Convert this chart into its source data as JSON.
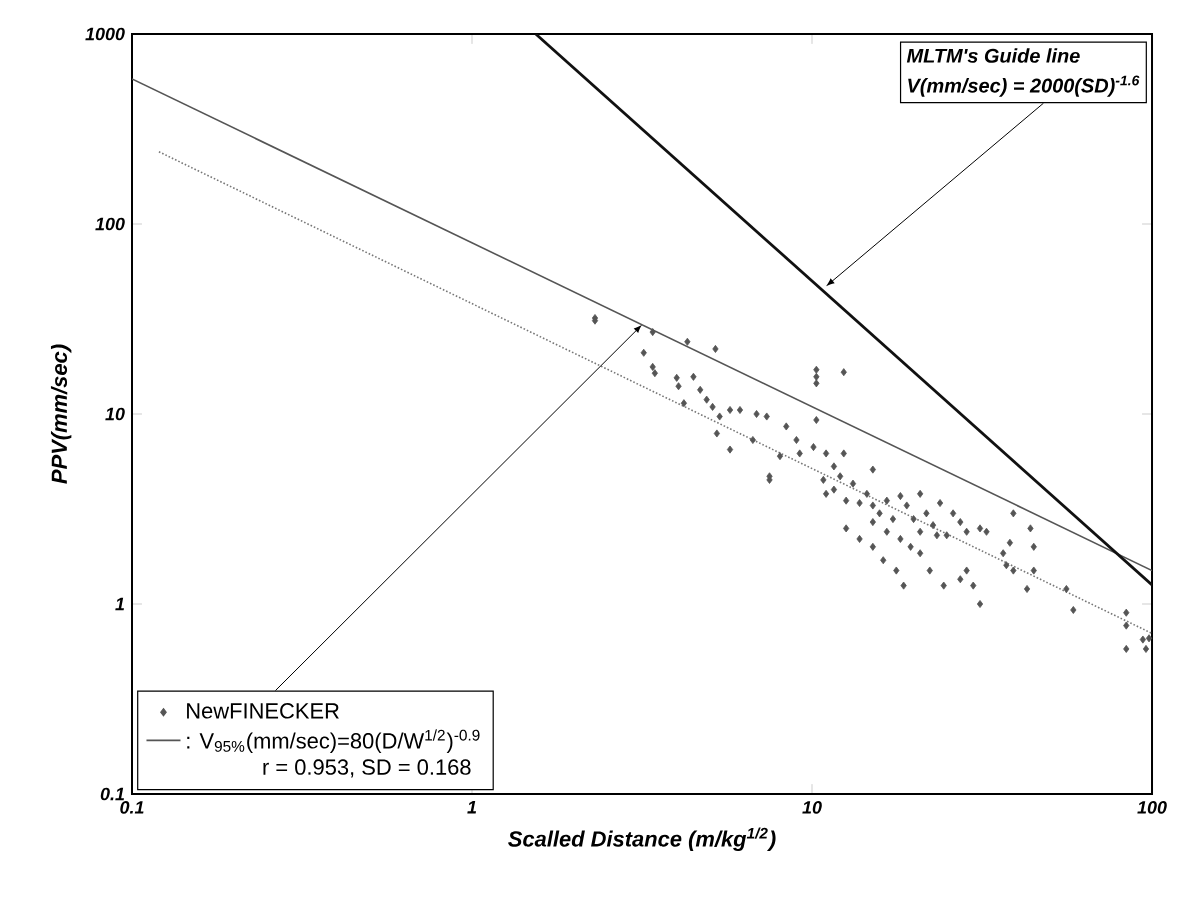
{
  "chart_data": {
    "type": "scatter",
    "xlabel": "Scalled Distance (m/kg$^{1/2}$)",
    "ylabel": "PPV(mm/sec)",
    "log": "xy",
    "xlim": [
      0.1,
      100
    ],
    "ylim": [
      0.1,
      1000
    ],
    "xticks": [
      0.1,
      1,
      10,
      100
    ],
    "yticks": [
      0.1,
      1,
      10,
      100,
      1000
    ],
    "legend": "bottom left",
    "annotations": [
      "MLTM's Guide line",
      {
        "text": "V(mm/sec) = 2000(SD)$^{-1.6}$",
        "x": 11,
        "y": 47
      },
      "r = 0.953, SD = 0.168"
    ],
    "series": [
      {
        "name": "NewFINECKER",
        "marker": "diamond",
        "color": "#555555",
        "x": [
          2.3,
          2.3,
          3.4,
          4.3,
          5.2,
          3.2,
          3.4,
          3.45,
          4.0,
          4.48,
          4.05,
          4.69,
          4.9,
          4.2,
          5.1,
          5.74,
          6.14,
          6.87,
          7.36,
          5.35,
          10.3,
          10.3,
          10.3,
          12.4,
          5.25,
          5.74,
          6.7,
          7.5,
          7.5,
          8.05,
          8.4,
          9.0,
          9.2,
          10.1,
          10.3,
          11.0,
          11.6,
          12.4,
          15.1,
          10.8,
          11.0,
          11.6,
          12.1,
          12.6,
          13.2,
          13.8,
          14.5,
          15.1,
          15.8,
          16.6,
          17.3,
          18.2,
          19.0,
          19.9,
          20.8,
          20.8,
          21.7,
          22.7,
          23.8,
          24.9,
          26.0,
          27.3,
          12.6,
          13.8,
          15.1,
          16.2,
          17.7,
          18.6,
          20.8,
          22.2,
          24.4,
          27.3,
          28.5,
          29.8,
          31.2,
          31.2,
          32.6,
          36.5,
          37.3,
          38.2,
          39.1,
          42.9,
          44.9,
          43.9,
          39.1,
          44.9,
          56.0,
          58.7,
          84.0,
          84.0,
          84.0,
          94.0,
          96.0,
          98.0,
          18.2,
          19.5,
          16.6,
          15.1,
          23.3,
          28.5
        ],
        "values": [
          32,
          31,
          27,
          24,
          22,
          21,
          17.7,
          16.4,
          15.5,
          15.7,
          14,
          13.4,
          11.9,
          11.4,
          10.9,
          10.5,
          10.5,
          10,
          9.7,
          9.7,
          17.1,
          15.7,
          14.5,
          16.6,
          7.9,
          6.5,
          7.3,
          4.7,
          4.5,
          6.0,
          8.6,
          7.3,
          6.2,
          6.7,
          9.3,
          6.2,
          5.3,
          6.2,
          5.1,
          4.5,
          3.8,
          4.0,
          4.7,
          3.5,
          4.3,
          3.4,
          3.8,
          3.3,
          3.0,
          3.5,
          2.8,
          3.7,
          3.3,
          2.8,
          3.8,
          2.4,
          3.0,
          2.6,
          3.4,
          2.3,
          3.0,
          2.7,
          2.5,
          2.2,
          2.0,
          1.7,
          1.5,
          1.25,
          1.85,
          1.5,
          1.25,
          1.35,
          1.5,
          1.25,
          1.0,
          2.5,
          2.4,
          1.85,
          1.6,
          2.1,
          1.5,
          1.2,
          2.0,
          2.5,
          3.0,
          1.5,
          1.2,
          0.93,
          0.9,
          0.77,
          0.58,
          0.65,
          0.58,
          0.66,
          2.2,
          2.0,
          2.4,
          2.7,
          2.3,
          2.4
        ]
      },
      {
        "name": ": V$_{95%}$(mm/sec)=80(D/W$^{1/2}$)$^{-0.9}$",
        "type": "line",
        "line_style": "solid",
        "color": "#555555",
        "x": [
          0.1,
          100
        ],
        "values": [
          580,
          1.5
        ]
      },
      {
        "type": "line",
        "line_style": "dotted",
        "color": "#777777",
        "x": [
          0.12,
          100
        ],
        "values": [
          240,
          0.7
        ]
      },
      {
        "type": "line",
        "line_style": "solid",
        "color": "#111111",
        "x": [
          1.54,
          100
        ],
        "values": [
          1000,
          1.26
        ]
      }
    ]
  }
}
